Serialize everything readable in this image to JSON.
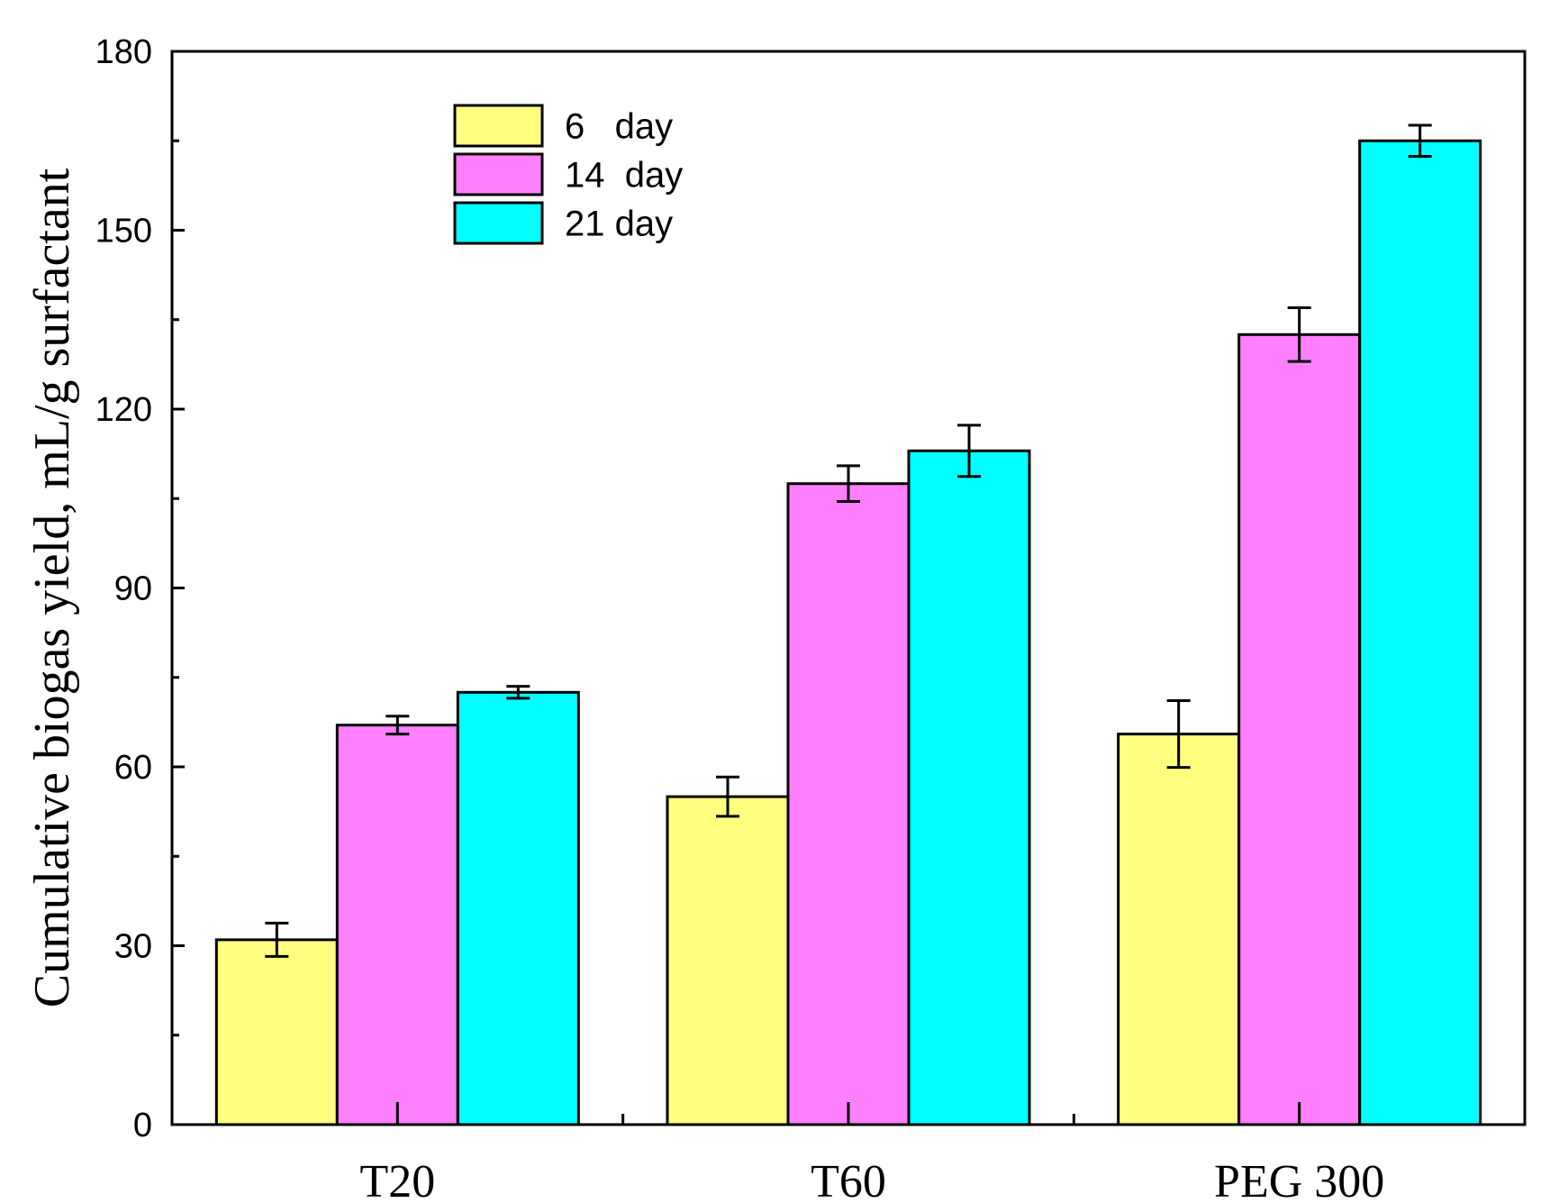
{
  "chart_data": {
    "type": "bar",
    "title": "",
    "xlabel": "",
    "ylabel": "Cumulative biogas yield, mL/g surfactant",
    "ylim": [
      0,
      180
    ],
    "yticks": [
      0,
      30,
      60,
      90,
      120,
      150,
      180
    ],
    "grid": false,
    "legend_position": "top-left",
    "categories": [
      "T20",
      "T60",
      "PEG 300"
    ],
    "series": [
      {
        "name": "6   day",
        "color": "#ffff80",
        "values": [
          31,
          55,
          65.5
        ],
        "errors": [
          2.8,
          3.3,
          5.6
        ]
      },
      {
        "name": "14  day",
        "color": "#ff80ff",
        "values": [
          67,
          107.5,
          132.5
        ],
        "errors": [
          1.5,
          3.0,
          4.5
        ]
      },
      {
        "name": "21 day",
        "color": "#00ffff",
        "values": [
          72.5,
          113,
          165
        ],
        "errors": [
          1.0,
          4.3,
          2.6
        ]
      }
    ]
  }
}
